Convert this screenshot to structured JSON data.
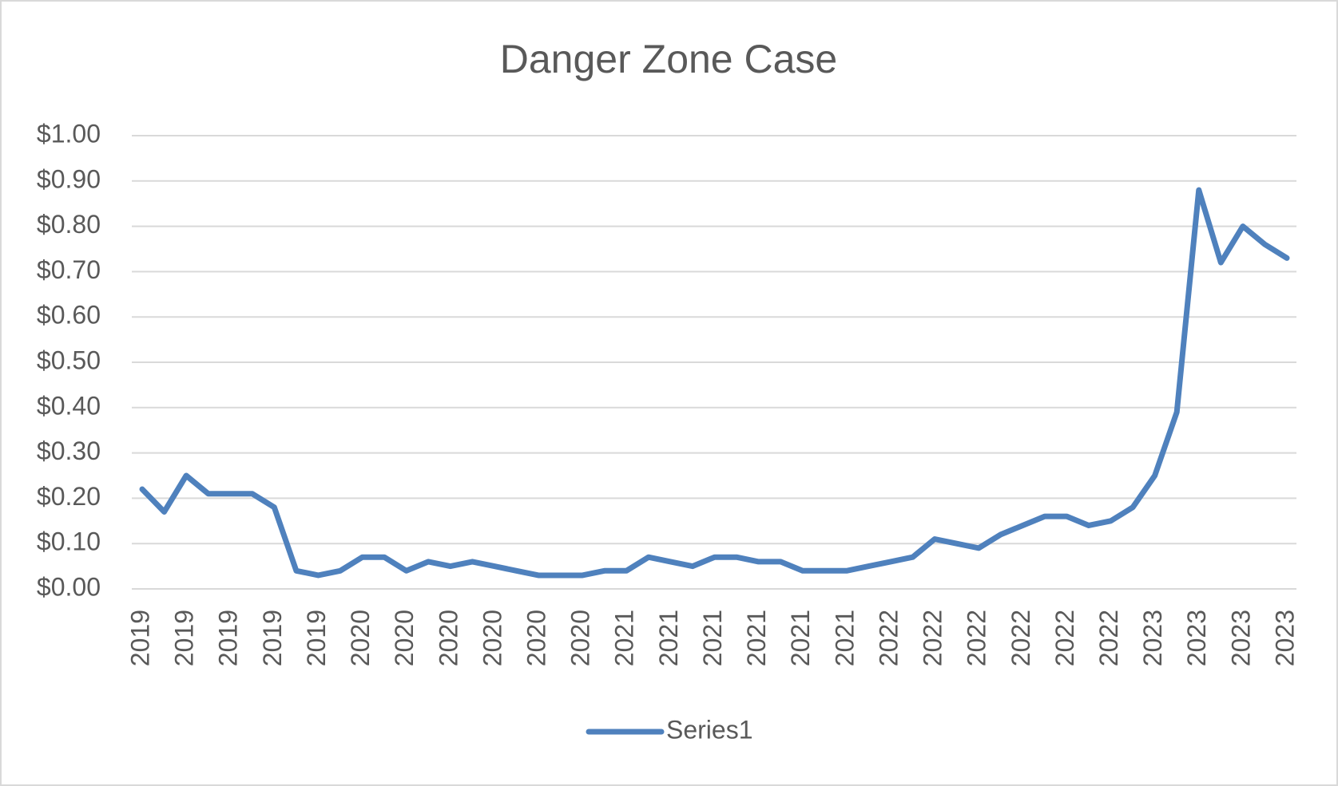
{
  "chart_data": {
    "type": "line",
    "title": "Danger Zone Case",
    "categories": [
      "2019",
      null,
      "2019",
      null,
      "2019",
      null,
      "2019",
      null,
      "2019",
      null,
      "2020",
      null,
      "2020",
      null,
      "2020",
      null,
      "2020",
      null,
      "2020",
      null,
      "2020",
      null,
      "2021",
      null,
      "2021",
      null,
      "2021",
      null,
      "2021",
      null,
      "2021",
      null,
      "2021",
      null,
      "2022",
      null,
      "2022",
      null,
      "2022",
      null,
      "2022",
      null,
      "2022",
      null,
      "2022",
      null,
      "2023",
      null,
      "2023",
      null,
      "2023",
      null,
      "2023"
    ],
    "series": [
      {
        "name": "Series1",
        "color": "#4f81bd",
        "values": [
          0.22,
          0.17,
          0.25,
          0.21,
          0.21,
          0.21,
          0.18,
          0.04,
          0.03,
          0.04,
          0.07,
          0.07,
          0.04,
          0.06,
          0.05,
          0.06,
          0.05,
          0.04,
          0.03,
          0.03,
          0.03,
          0.04,
          0.04,
          0.07,
          0.06,
          0.05,
          0.07,
          0.07,
          0.06,
          0.06,
          0.04,
          0.04,
          0.04,
          0.05,
          0.06,
          0.07,
          0.11,
          0.1,
          0.09,
          0.12,
          0.14,
          0.16,
          0.16,
          0.14,
          0.15,
          0.18,
          0.25,
          0.39,
          0.88,
          0.72,
          0.8,
          0.76,
          0.73
        ]
      }
    ],
    "ylim": [
      0,
      1
    ],
    "yticks": [
      {
        "value": 0,
        "label": "$0.00"
      },
      {
        "value": 0.1,
        "label": "$0.10"
      },
      {
        "value": 0.2,
        "label": "$0.20"
      },
      {
        "value": 0.3,
        "label": "$0.30"
      },
      {
        "value": 0.4,
        "label": "$0.40"
      },
      {
        "value": 0.5,
        "label": "$0.50"
      },
      {
        "value": 0.6,
        "label": "$0.60"
      },
      {
        "value": 0.7,
        "label": "$0.70"
      },
      {
        "value": 0.8,
        "label": "$0.80"
      },
      {
        "value": 0.9,
        "label": "$0.90"
      },
      {
        "value": 1,
        "label": "$1.00"
      }
    ],
    "grid": true,
    "legend": "bottom"
  }
}
